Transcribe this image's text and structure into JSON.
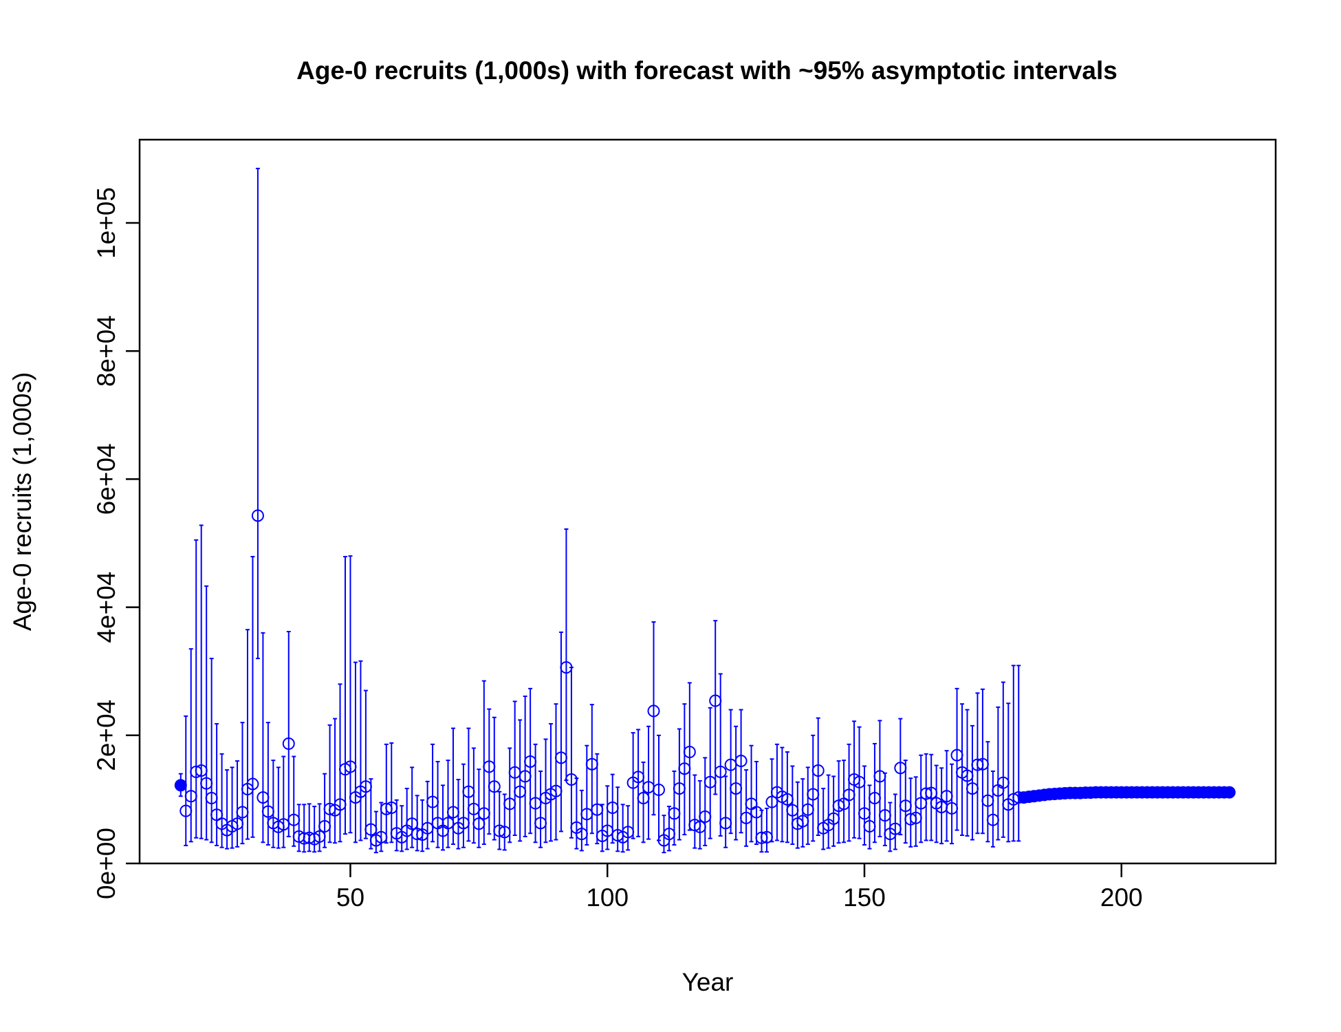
{
  "chart_data": {
    "type": "scatter",
    "title": "Age-0 recruits (1,000s) with forecast with ~95% asymptotic intervals",
    "xlabel": "Year",
    "ylabel": "Age-0 recruits (1,000s)",
    "xlim": [
      9,
      230
    ],
    "ylim": [
      0,
      113000
    ],
    "x_ticks": [
      50,
      100,
      150,
      200
    ],
    "x_tick_labels": [
      "50",
      "100",
      "150",
      "200"
    ],
    "y_ticks": [
      0,
      20000,
      40000,
      60000,
      80000,
      100000
    ],
    "y_tick_labels": [
      "0e+00",
      "2e+04",
      "4e+04",
      "6e+04",
      "8e+04",
      "1e+05"
    ],
    "grid": false,
    "legend": "none",
    "series_color": "#0000ff",
    "series": [
      {
        "marker": "filled-circle",
        "x": [
          17
        ],
        "y": [
          12200
        ],
        "lower": [
          10500
        ],
        "upper": [
          14000
        ]
      },
      {
        "marker": "open-circle",
        "x": [
          18,
          19,
          20,
          21,
          22,
          23,
          24,
          25,
          26,
          27,
          28,
          29,
          30,
          31,
          32,
          33,
          34,
          35,
          36,
          37,
          38,
          39,
          40,
          41,
          42,
          43,
          44,
          45,
          46,
          47,
          48,
          49,
          50,
          51,
          52,
          53,
          54,
          55,
          56,
          57,
          58,
          59,
          60,
          61,
          62,
          63,
          64,
          65,
          66,
          67,
          68,
          69,
          70,
          71,
          72,
          73,
          74,
          75,
          76,
          77,
          78,
          79,
          80,
          81,
          82,
          83,
          84,
          85,
          86,
          87,
          88,
          89,
          90,
          91,
          92,
          93,
          94,
          95,
          96,
          97,
          98,
          99,
          100,
          101,
          102,
          103,
          104,
          105,
          106,
          107,
          108,
          109,
          110,
          111,
          112,
          113,
          114,
          115,
          116,
          117,
          118,
          119,
          120,
          121,
          122,
          123,
          124,
          125,
          126,
          127,
          128,
          129,
          130,
          131,
          132,
          133,
          134,
          135,
          136,
          137,
          138,
          139,
          140,
          141,
          142,
          143,
          144,
          145,
          146,
          147,
          148,
          149,
          150,
          151,
          152,
          153,
          154,
          155,
          156,
          157,
          158,
          159,
          160,
          161,
          162,
          163,
          164,
          165,
          166,
          167,
          168,
          169,
          170,
          171,
          172,
          173,
          174,
          175,
          176,
          177,
          178,
          179,
          180
        ],
        "y": [
          8200,
          10500,
          14300,
          14500,
          12500,
          10200,
          7600,
          6200,
          5200,
          5800,
          6200,
          8000,
          11600,
          12400,
          54300,
          10300,
          8100,
          6300,
          5700,
          6100,
          18700,
          6800,
          4200,
          3900,
          4000,
          3800,
          4200,
          5800,
          8500,
          8300,
          9200,
          14700,
          15100,
          10300,
          11200,
          12000,
          5300,
          3600,
          4100,
          8500,
          8700,
          4700,
          4100,
          5100,
          6200,
          4600,
          4500,
          5500,
          9600,
          6300,
          5100,
          6300,
          8000,
          5500,
          6300,
          11200,
          8500,
          6200,
          7800,
          15100,
          12000,
          5100,
          4900,
          9300,
          14200,
          11200,
          13600,
          15900,
          9400,
          6300,
          10200,
          10800,
          11300,
          16500,
          30600,
          13100,
          5600,
          4600,
          7700,
          15500,
          8400,
          4300,
          5100,
          8700,
          4400,
          4100,
          4900,
          12600,
          13500,
          10200,
          11900,
          23800,
          11500,
          3600,
          4600,
          7800,
          11700,
          14800,
          17400,
          6000,
          5700,
          7300,
          12700,
          25400,
          14300,
          6300,
          15400,
          11700,
          16000,
          7100,
          9300,
          8000,
          4000,
          4100,
          9600,
          11100,
          10400,
          10000,
          8300,
          6200,
          6600,
          8400,
          10800,
          14500,
          5500,
          6000,
          7000,
          9000,
          9300,
          10700,
          13100,
          12700,
          7800,
          5800,
          10200,
          13600,
          7500,
          4600,
          5400,
          14900,
          9000,
          6900,
          7100,
          9400,
          10900,
          11000,
          9400,
          8800,
          10500,
          8600,
          16900,
          14200,
          13700,
          11700,
          15400,
          15500,
          9800,
          6800,
          11400,
          12600,
          9200,
          10000,
          10300
        ],
        "lower": [
          2800,
          3400,
          4000,
          3900,
          3700,
          3300,
          2800,
          2500,
          2300,
          2400,
          2600,
          3100,
          3800,
          4100,
          32000,
          3300,
          2900,
          2500,
          2400,
          2500,
          4200,
          2700,
          1900,
          1800,
          1900,
          1800,
          1900,
          2500,
          3300,
          3200,
          3400,
          4600,
          4800,
          3300,
          3600,
          3900,
          2300,
          1700,
          1900,
          3200,
          3300,
          2000,
          1900,
          2200,
          2500,
          2000,
          1900,
          2300,
          3400,
          2500,
          2100,
          2500,
          3000,
          2300,
          2500,
          3500,
          3200,
          2500,
          3000,
          4600,
          3700,
          2200,
          2100,
          3300,
          4400,
          3500,
          4200,
          4700,
          3300,
          2500,
          3300,
          3500,
          3700,
          5000,
          13000,
          4000,
          2300,
          2000,
          2900,
          4700,
          3100,
          1900,
          2200,
          3200,
          1900,
          1800,
          2100,
          3900,
          4200,
          3300,
          3800,
          7600,
          3600,
          1700,
          2000,
          2900,
          3700,
          4500,
          5200,
          2400,
          2300,
          2800,
          3900,
          10800,
          4300,
          2500,
          4700,
          3700,
          4800,
          2700,
          3400,
          3000,
          1800,
          1800,
          3400,
          3600,
          3400,
          3300,
          3000,
          2400,
          2600,
          3000,
          3500,
          4400,
          2200,
          2400,
          2700,
          3200,
          3300,
          3500,
          4000,
          3900,
          2900,
          2300,
          3300,
          4200,
          2800,
          1900,
          2200,
          4500,
          3200,
          2600,
          2700,
          3300,
          3600,
          3600,
          3300,
          3100,
          3500,
          3100,
          5200,
          4400,
          4300,
          3700,
          4700,
          4700,
          3400,
          2600,
          3700,
          4100,
          3400,
          3500,
          3500
        ],
        "upper": [
          23000,
          33500,
          50500,
          52800,
          43300,
          32000,
          21800,
          17100,
          14600,
          15000,
          16000,
          22000,
          36500,
          47900,
          108500,
          36000,
          22000,
          16100,
          15000,
          16700,
          36200,
          16700,
          9200,
          9200,
          9300,
          8900,
          9300,
          14000,
          21600,
          22600,
          28000,
          47900,
          48000,
          31400,
          31600,
          27000,
          13200,
          8100,
          9500,
          18600,
          18800,
          9900,
          9000,
          11700,
          15000,
          10600,
          9900,
          12800,
          18600,
          15900,
          12200,
          16100,
          21100,
          13100,
          15500,
          21100,
          18000,
          14700,
          28500,
          24100,
          22800,
          11200,
          10800,
          18000,
          25300,
          22400,
          26100,
          27300,
          18600,
          14400,
          19400,
          21800,
          24900,
          36100,
          52200,
          30600,
          13300,
          11400,
          18400,
          24800,
          17100,
          9200,
          12100,
          13900,
          11900,
          9200,
          9000,
          20400,
          20900,
          15800,
          21400,
          37700,
          20000,
          7500,
          8900,
          14400,
          21000,
          24900,
          28200,
          13800,
          12900,
          16500,
          24300,
          37900,
          29600,
          13600,
          24000,
          21400,
          24000,
          14600,
          18400,
          15900,
          8300,
          8600,
          16300,
          18600,
          18100,
          17400,
          15200,
          12700,
          13200,
          15000,
          20000,
          22700,
          11700,
          13800,
          13600,
          16000,
          16100,
          18600,
          22200,
          21300,
          15200,
          12200,
          18700,
          22300,
          14100,
          9500,
          10800,
          22600,
          16100,
          13300,
          13500,
          16900,
          17100,
          17000,
          15300,
          14900,
          17600,
          15500,
          27300,
          24900,
          24000,
          21500,
          26600,
          27200,
          19000,
          14400,
          24400,
          28300,
          25000,
          30900,
          30900
        ]
      },
      {
        "marker": "filled-circle",
        "x": [
          181,
          182,
          183,
          184,
          185,
          186,
          187,
          188,
          189,
          190,
          191,
          192,
          193,
          194,
          195,
          196,
          197,
          198,
          199,
          200,
          201,
          202,
          203,
          204,
          205,
          206,
          207,
          208,
          209,
          210,
          211,
          212,
          213,
          214,
          215,
          216,
          217,
          218,
          219,
          220,
          221
        ],
        "y": [
          10300,
          10400,
          10500,
          10600,
          10700,
          10800,
          10850,
          10900,
          10950,
          11000,
          11000,
          11000,
          11050,
          11050,
          11100,
          11100,
          11100,
          11100,
          11100,
          11100,
          11100,
          11100,
          11100,
          11100,
          11100,
          11100,
          11100,
          11100,
          11100,
          11100,
          11100,
          11100,
          11100,
          11100,
          11100,
          11100,
          11100,
          11100,
          11100,
          11100,
          11100
        ]
      }
    ]
  }
}
